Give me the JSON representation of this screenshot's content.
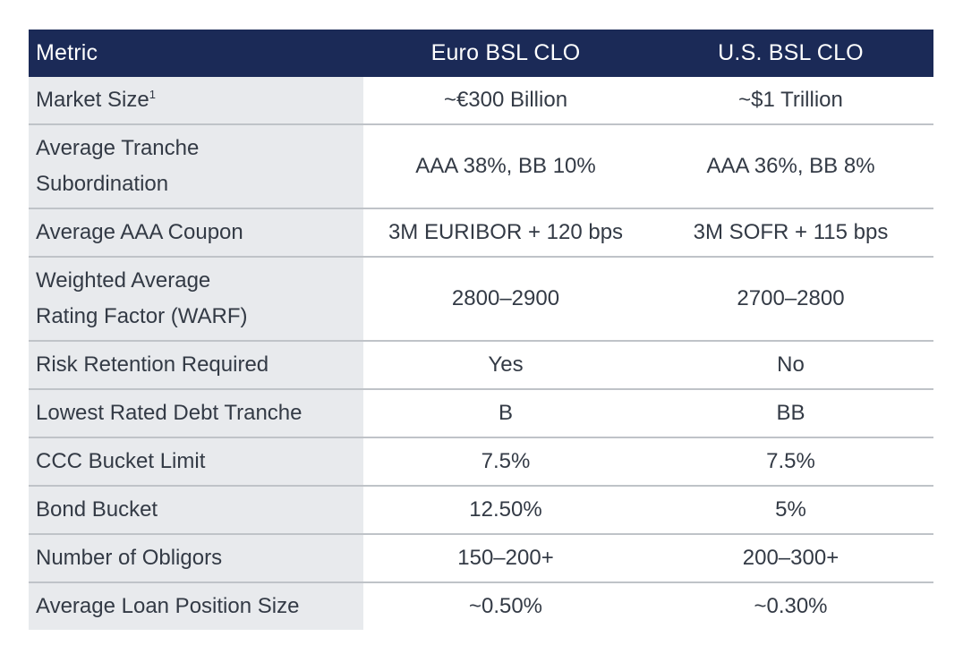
{
  "header": {
    "metric": "Metric",
    "euro": "Euro BSL CLO",
    "us": "U.S. BSL CLO"
  },
  "rows": [
    {
      "metric": "Market Size",
      "sup": "1",
      "euro": "~€300 Billion",
      "us": "~$1 Trillion"
    },
    {
      "metric_line1": "Average Tranche",
      "metric_line2": "Subordination",
      "euro": "AAA 38%, BB 10%",
      "us": "AAA 36%, BB 8%"
    },
    {
      "metric": "Average AAA Coupon",
      "euro": "3M EURIBOR + 120 bps",
      "us": "3M SOFR + 115 bps"
    },
    {
      "metric_line1": "Weighted Average",
      "metric_line2": "Rating Factor (WARF)",
      "euro": "2800–2900",
      "us": "2700–2800"
    },
    {
      "metric": "Risk Retention Required",
      "euro": "Yes",
      "us": "No"
    },
    {
      "metric": "Lowest Rated Debt Tranche",
      "euro": "B",
      "us": "BB"
    },
    {
      "metric": "CCC Bucket Limit",
      "euro": "7.5%",
      "us": "7.5%"
    },
    {
      "metric": "Bond Bucket",
      "euro": "12.50%",
      "us": "5%"
    },
    {
      "metric": "Number of Obligors",
      "euro": "150–200+",
      "us": "200–300+"
    },
    {
      "metric": "Average Loan Position Size",
      "euro": "~0.50%",
      "us": "~0.30%"
    }
  ]
}
